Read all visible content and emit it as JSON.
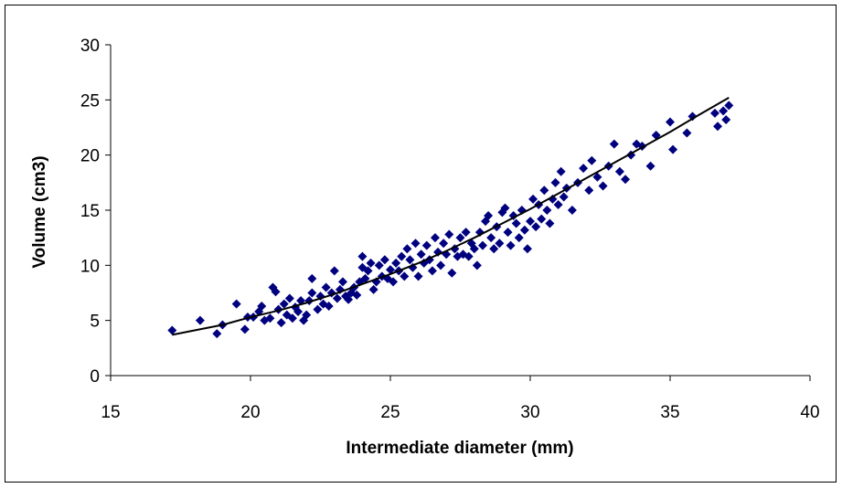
{
  "chart_data": {
    "type": "scatter",
    "title": "",
    "xlabel": "Intermediate diameter (mm)",
    "ylabel": "Volume (cm3)",
    "xlim": [
      15,
      40
    ],
    "ylim": [
      0,
      30
    ],
    "x_ticks": [
      "15",
      "20",
      "25",
      "30",
      "35",
      "40"
    ],
    "y_ticks": [
      "0",
      "5",
      "10",
      "15",
      "20",
      "25",
      "30"
    ],
    "grid": false,
    "legend": "none",
    "colors": {
      "marker": "#00007f",
      "trend": "#000000",
      "axis": "#000000"
    },
    "series": [
      {
        "marker": "diamond",
        "points": [
          [
            17.2,
            4.1
          ],
          [
            18.2,
            5.0
          ],
          [
            18.8,
            3.8
          ],
          [
            19.0,
            4.6
          ],
          [
            19.5,
            6.5
          ],
          [
            19.8,
            4.2
          ],
          [
            19.9,
            5.3
          ],
          [
            20.1,
            5.3
          ],
          [
            20.3,
            5.8
          ],
          [
            20.4,
            6.3
          ],
          [
            20.5,
            5.0
          ],
          [
            20.7,
            5.2
          ],
          [
            20.8,
            8.0
          ],
          [
            20.9,
            7.6
          ],
          [
            21.0,
            6.0
          ],
          [
            21.1,
            4.8
          ],
          [
            21.2,
            6.5
          ],
          [
            21.3,
            5.5
          ],
          [
            21.4,
            7.0
          ],
          [
            21.5,
            5.2
          ],
          [
            21.6,
            6.2
          ],
          [
            21.7,
            5.8
          ],
          [
            21.8,
            6.8
          ],
          [
            21.9,
            5.0
          ],
          [
            22.0,
            5.5
          ],
          [
            22.1,
            6.8
          ],
          [
            22.2,
            7.5
          ],
          [
            22.2,
            8.8
          ],
          [
            22.4,
            6.0
          ],
          [
            22.5,
            7.2
          ],
          [
            22.6,
            6.5
          ],
          [
            22.7,
            8.0
          ],
          [
            22.8,
            6.3
          ],
          [
            22.9,
            7.5
          ],
          [
            23.0,
            9.5
          ],
          [
            23.1,
            7.0
          ],
          [
            23.2,
            7.8
          ],
          [
            23.3,
            8.5
          ],
          [
            23.4,
            7.2
          ],
          [
            23.5,
            6.9
          ],
          [
            23.6,
            7.5
          ],
          [
            23.7,
            8.0
          ],
          [
            23.8,
            7.3
          ],
          [
            23.9,
            8.5
          ],
          [
            24.0,
            9.8
          ],
          [
            24.0,
            10.8
          ],
          [
            24.1,
            8.8
          ],
          [
            24.2,
            9.5
          ],
          [
            24.3,
            10.2
          ],
          [
            24.4,
            7.8
          ],
          [
            24.5,
            8.5
          ],
          [
            24.6,
            10.0
          ],
          [
            24.7,
            9.0
          ],
          [
            24.8,
            10.5
          ],
          [
            24.9,
            8.8
          ],
          [
            25.0,
            9.6
          ],
          [
            25.1,
            8.5
          ],
          [
            25.2,
            10.2
          ],
          [
            25.3,
            9.5
          ],
          [
            25.4,
            10.8
          ],
          [
            25.5,
            9.0
          ],
          [
            25.6,
            11.5
          ],
          [
            25.7,
            10.5
          ],
          [
            25.8,
            9.8
          ],
          [
            25.9,
            12.0
          ],
          [
            26.0,
            9.0
          ],
          [
            26.1,
            11.0
          ],
          [
            26.2,
            10.2
          ],
          [
            26.3,
            11.8
          ],
          [
            26.4,
            10.5
          ],
          [
            26.5,
            9.5
          ],
          [
            26.6,
            12.5
          ],
          [
            26.7,
            11.2
          ],
          [
            26.8,
            10.0
          ],
          [
            26.9,
            12.0
          ],
          [
            27.0,
            11.0
          ],
          [
            27.1,
            12.8
          ],
          [
            27.2,
            9.3
          ],
          [
            27.3,
            11.5
          ],
          [
            27.4,
            10.8
          ],
          [
            27.5,
            12.5
          ],
          [
            27.6,
            11.0
          ],
          [
            27.7,
            13.0
          ],
          [
            27.8,
            10.8
          ],
          [
            27.9,
            12.0
          ],
          [
            28.0,
            11.5
          ],
          [
            28.1,
            10.0
          ],
          [
            28.2,
            13.0
          ],
          [
            28.3,
            11.8
          ],
          [
            28.4,
            14.0
          ],
          [
            28.5,
            14.5
          ],
          [
            28.6,
            12.5
          ],
          [
            28.7,
            11.5
          ],
          [
            28.8,
            13.5
          ],
          [
            28.9,
            12.0
          ],
          [
            29.0,
            14.8
          ],
          [
            29.1,
            15.2
          ],
          [
            29.2,
            13.0
          ],
          [
            29.3,
            11.8
          ],
          [
            29.4,
            14.5
          ],
          [
            29.5,
            13.8
          ],
          [
            29.6,
            12.5
          ],
          [
            29.7,
            15.0
          ],
          [
            29.8,
            13.2
          ],
          [
            29.9,
            11.5
          ],
          [
            30.0,
            14.0
          ],
          [
            30.1,
            16.0
          ],
          [
            30.2,
            13.5
          ],
          [
            30.3,
            15.5
          ],
          [
            30.4,
            14.2
          ],
          [
            30.5,
            16.8
          ],
          [
            30.6,
            15.0
          ],
          [
            30.7,
            13.8
          ],
          [
            30.8,
            16.0
          ],
          [
            30.9,
            17.5
          ],
          [
            31.0,
            15.5
          ],
          [
            31.1,
            18.5
          ],
          [
            31.2,
            16.2
          ],
          [
            31.3,
            17.0
          ],
          [
            31.5,
            15.0
          ],
          [
            31.7,
            17.5
          ],
          [
            31.9,
            18.8
          ],
          [
            32.1,
            16.8
          ],
          [
            32.2,
            19.5
          ],
          [
            32.4,
            18.0
          ],
          [
            32.6,
            17.2
          ],
          [
            32.8,
            19.0
          ],
          [
            33.0,
            21.0
          ],
          [
            33.2,
            18.5
          ],
          [
            33.4,
            17.8
          ],
          [
            33.6,
            20.0
          ],
          [
            33.8,
            21.0
          ],
          [
            34.0,
            20.8
          ],
          [
            34.3,
            19.0
          ],
          [
            34.5,
            21.8
          ],
          [
            35.0,
            23.0
          ],
          [
            35.1,
            20.5
          ],
          [
            35.6,
            22.0
          ],
          [
            35.8,
            23.5
          ],
          [
            36.6,
            23.8
          ],
          [
            36.7,
            22.6
          ],
          [
            36.9,
            24.0
          ],
          [
            37.0,
            23.2
          ],
          [
            37.1,
            24.5
          ]
        ]
      },
      {
        "type": "line",
        "points": [
          [
            17.2,
            3.7
          ],
          [
            18.0,
            4.1
          ],
          [
            19.0,
            4.6
          ],
          [
            20.0,
            5.3
          ],
          [
            21.0,
            5.9
          ],
          [
            22.0,
            6.6
          ],
          [
            23.0,
            7.4
          ],
          [
            24.0,
            8.3
          ],
          [
            25.0,
            9.2
          ],
          [
            26.0,
            10.2
          ],
          [
            27.0,
            11.3
          ],
          [
            28.0,
            12.5
          ],
          [
            29.0,
            13.8
          ],
          [
            30.0,
            15.1
          ],
          [
            31.0,
            16.5
          ],
          [
            32.0,
            17.9
          ],
          [
            33.0,
            19.3
          ],
          [
            34.0,
            20.7
          ],
          [
            35.0,
            22.1
          ],
          [
            36.0,
            23.6
          ],
          [
            37.1,
            25.2
          ]
        ]
      }
    ]
  }
}
